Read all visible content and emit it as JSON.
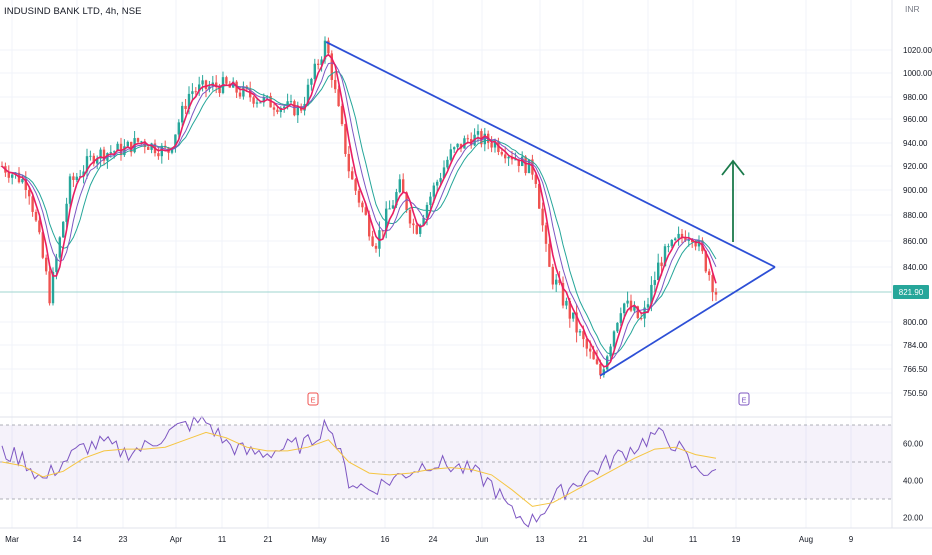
{
  "header": {
    "symbol_title": "INDUSIND BANK LTD, 4h, NSE",
    "currency": "INR"
  },
  "colors": {
    "up_candle": "#26a69a",
    "down_candle": "#ef5350",
    "trendline": "#2d4fd6",
    "arrow": "#1b7a4b",
    "ma_fast": "#e91e63",
    "ma_mid": "#7e57c2",
    "ma_slow": "#26a69a",
    "rsi_line": "#7e57c2",
    "rsi_ma": "#f5c542",
    "rsi_band": "#7e57c2",
    "last_price_bg": "#26a69a"
  },
  "chart_data": [
    {
      "type": "candlestick",
      "title": "INDUSIND BANK LTD, 4h, NSE",
      "y_axis_unit": "INR",
      "y_ticks": [
        1020.0,
        1000.0,
        980.0,
        960.0,
        940.0,
        920.0,
        900.0,
        880.0,
        860.0,
        840.0,
        821.9,
        800.0,
        784.0,
        766.5,
        750.5
      ],
      "x_ticks": [
        "Mar",
        "14",
        "23",
        "Apr",
        "11",
        "21",
        "May",
        "16",
        "24",
        "Jun",
        "13",
        "21",
        "Jul",
        "11",
        "19",
        "Aug",
        "9"
      ],
      "last_price": 821.9,
      "last_price_label": "821.90",
      "price_path": [
        [
          "Mar-start",
          920
        ],
        [
          "Mar-mid",
          905
        ],
        [
          "Mar-low",
          818
        ],
        [
          "14-low",
          905
        ],
        [
          "14-high",
          930
        ],
        [
          "23",
          935
        ],
        [
          "23-high",
          942
        ],
        [
          "Apr-early",
          932
        ],
        [
          "Apr",
          985
        ],
        [
          "Apr-11",
          990
        ],
        [
          "Apr-21",
          975
        ],
        [
          "Apr-late",
          968
        ],
        [
          "May-peak",
          1027
        ],
        [
          "May-drop",
          912
        ],
        [
          "May-mid",
          858
        ],
        [
          "May-16",
          903
        ],
        [
          "May-24",
          868
        ],
        [
          "May-late",
          930
        ],
        [
          "Jun",
          945
        ],
        [
          "Jun-early",
          940
        ],
        [
          "Jun-13",
          915
        ],
        [
          "Jun-13-low",
          840
        ],
        [
          "Jun-21",
          790
        ],
        [
          "Jun-21-low",
          762
        ],
        [
          "Jun-end",
          815
        ],
        [
          "Jul-early",
          800
        ],
        [
          "Jul",
          845
        ],
        [
          "Jul-11",
          866
        ],
        [
          "Jul-11-high",
          866
        ],
        [
          "Jul-15",
          838
        ],
        [
          "Jul-16",
          822
        ]
      ],
      "trendlines": [
        {
          "name": "upper",
          "from": [
            "May-peak",
            1027
          ],
          "to": [
            "Aug-apex",
            840
          ]
        },
        {
          "name": "lower",
          "from": [
            "Jun-21-low",
            762
          ],
          "to": [
            "Aug-apex",
            840
          ]
        }
      ],
      "annotation": {
        "type": "arrow-up",
        "at": "Jul-19",
        "direction": "up"
      },
      "earnings_markers": [
        "May",
        "Jul-15"
      ],
      "earnings_label": "E"
    },
    {
      "type": "line",
      "name": "RSI",
      "y_ticks": [
        60.0,
        40.0,
        20.0
      ],
      "bands": [
        70,
        50,
        30
      ],
      "rsi_path": [
        55,
        52,
        40,
        50,
        58,
        60,
        55,
        58,
        65,
        70,
        72,
        60,
        55,
        55,
        58,
        60,
        72,
        40,
        35,
        40,
        45,
        50,
        48,
        45,
        38,
        22,
        18,
        30,
        38,
        45,
        52,
        58,
        65,
        60,
        45,
        46
      ],
      "rsi_ma_path": [
        50,
        48,
        42,
        45,
        52,
        56,
        57,
        57,
        58,
        62,
        66,
        63,
        58,
        56,
        56,
        58,
        62,
        50,
        44,
        43,
        44,
        46,
        47,
        46,
        43,
        35,
        26,
        28,
        34,
        40,
        46,
        52,
        57,
        58,
        54,
        52
      ]
    }
  ]
}
